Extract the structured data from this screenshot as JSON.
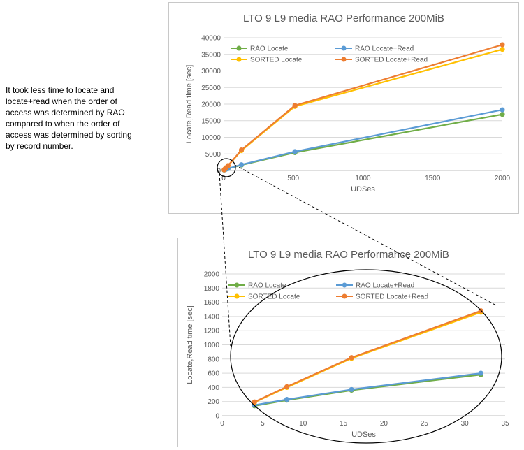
{
  "note": {
    "lines": [
      "It took less time to locate and",
      "locate+read when the order of",
      "access was determined by RAO",
      "compared to when the order of",
      "access was determined by sorting",
      "by record number."
    ]
  },
  "colors": {
    "rao_locate": "#70ad47",
    "rao_locate_read": "#5b9bd5",
    "sorted_locate": "#ffc000",
    "sorted_locate_read": "#ed7d31",
    "grid": "#d9d9d9",
    "axis_text": "#595959"
  },
  "chart_data": [
    {
      "type": "line",
      "title": "LTO 9 L9 media RAO Performance 200MiB",
      "xlabel": "UDSes",
      "ylabel": "Locate,Read time [sec]",
      "xlim": [
        0,
        2000
      ],
      "ylim": [
        0,
        40000
      ],
      "xticks": [
        0,
        500,
        1000,
        1500,
        2000
      ],
      "xtick_labels": [
        "0",
        "500",
        "1000",
        "1500",
        "2000"
      ],
      "yticks": [
        0,
        5000,
        10000,
        15000,
        20000,
        25000,
        30000,
        35000,
        40000
      ],
      "ytick_labels": [
        "0",
        "5000",
        "10000",
        "15000",
        "20000",
        "25000",
        "30000",
        "35000",
        "40000"
      ],
      "grid": "horizontal",
      "legend": "top-inside",
      "series": [
        {
          "name": "RAO Locate",
          "x": [
            4,
            8,
            16,
            32,
            128,
            512,
            2000
          ],
          "values": [
            140,
            220,
            360,
            580,
            1650,
            5400,
            16900
          ]
        },
        {
          "name": "RAO Locate+Read",
          "x": [
            4,
            8,
            16,
            32,
            128,
            512,
            2000
          ],
          "values": [
            150,
            230,
            370,
            600,
            1750,
            5700,
            18300
          ]
        },
        {
          "name": "SORTED Locate",
          "x": [
            4,
            8,
            16,
            32,
            128,
            512,
            2000
          ],
          "values": [
            190,
            400,
            810,
            1460,
            6000,
            19300,
            36500
          ]
        },
        {
          "name": "SORTED Locate+Read",
          "x": [
            4,
            8,
            16,
            32,
            128,
            512,
            2000
          ],
          "values": [
            195,
            410,
            820,
            1480,
            6200,
            19600,
            37900
          ]
        }
      ]
    },
    {
      "type": "line",
      "title": "LTO 9 L9 media RAO Performance 200MiB",
      "xlabel": "UDSes",
      "ylabel": "Locate,Read time [sec]",
      "xlim": [
        0,
        35
      ],
      "ylim": [
        0,
        2000
      ],
      "xticks": [
        0,
        5,
        10,
        15,
        20,
        25,
        30,
        35
      ],
      "xtick_labels": [
        "0",
        "5",
        "10",
        "15",
        "20",
        "25",
        "30",
        "35"
      ],
      "yticks": [
        0,
        200,
        400,
        600,
        800,
        1000,
        1200,
        1400,
        1600,
        1800,
        2000
      ],
      "ytick_labels": [
        "0",
        "200",
        "400",
        "600",
        "800",
        "1000",
        "1200",
        "1400",
        "1600",
        "1800",
        "2000"
      ],
      "grid": "horizontal",
      "legend": "top-inside",
      "series": [
        {
          "name": "RAO Locate",
          "x": [
            4,
            8,
            16,
            32
          ],
          "values": [
            140,
            220,
            360,
            580
          ]
        },
        {
          "name": "RAO Locate+Read",
          "x": [
            4,
            8,
            16,
            32
          ],
          "values": [
            150,
            230,
            370,
            600
          ]
        },
        {
          "name": "SORTED Locate",
          "x": [
            4,
            8,
            16,
            32
          ],
          "values": [
            190,
            400,
            810,
            1460
          ]
        },
        {
          "name": "SORTED Locate+Read",
          "x": [
            4,
            8,
            16,
            32
          ],
          "values": [
            195,
            410,
            820,
            1480
          ]
        }
      ]
    }
  ]
}
